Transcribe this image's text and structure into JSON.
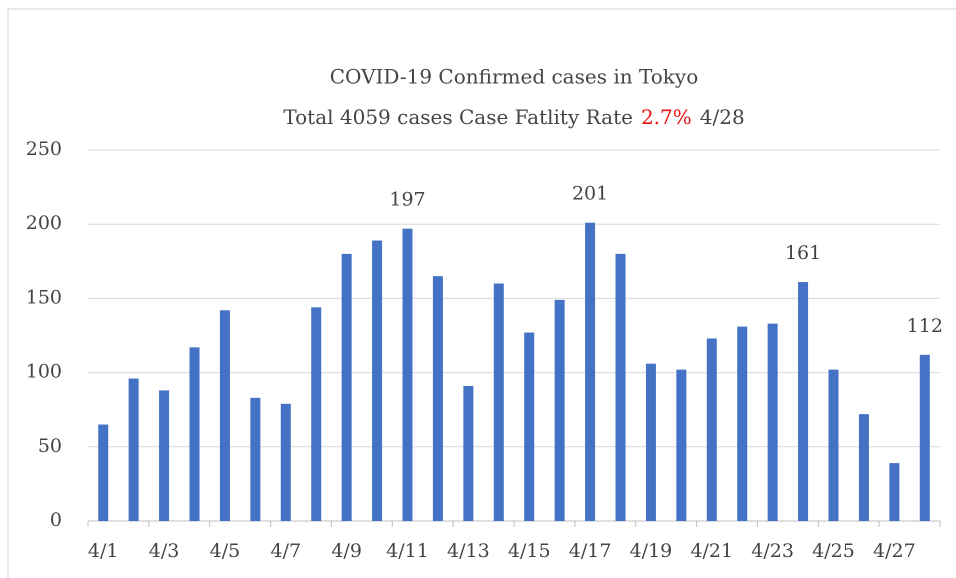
{
  "chart_data": {
    "type": "bar",
    "title": "COVID-19  Confirmed cases in Tokyo",
    "subtitle": [
      "Total 4059 cases Case Fatlity Rate",
      "2.7%",
      "4/28"
    ],
    "highlight_color": "#ee1111",
    "categories": [
      "4/1",
      null,
      "4/3",
      null,
      "4/5",
      null,
      "4/7",
      null,
      "4/9",
      null,
      "4/11",
      null,
      "4/13",
      null,
      "4/15",
      null,
      "4/17",
      null,
      "4/19",
      null,
      "4/21",
      null,
      "4/23",
      null,
      "4/25",
      null,
      "4/27",
      null
    ],
    "values": [
      65,
      96,
      88,
      117,
      142,
      83,
      79,
      144,
      180,
      189,
      197,
      165,
      91,
      160,
      127,
      149,
      201,
      180,
      106,
      102,
      123,
      131,
      133,
      161,
      102,
      72,
      39,
      112
    ],
    "value_labels": [
      null,
      null,
      null,
      null,
      null,
      null,
      null,
      null,
      null,
      null,
      "197",
      null,
      null,
      null,
      null,
      null,
      "201",
      null,
      null,
      null,
      null,
      null,
      null,
      "161",
      null,
      null,
      null,
      "112"
    ],
    "color": "#4472c4",
    "ylim": [
      0,
      250
    ],
    "yticks": [
      0,
      50,
      100,
      150,
      200,
      250
    ],
    "grid": true
  }
}
